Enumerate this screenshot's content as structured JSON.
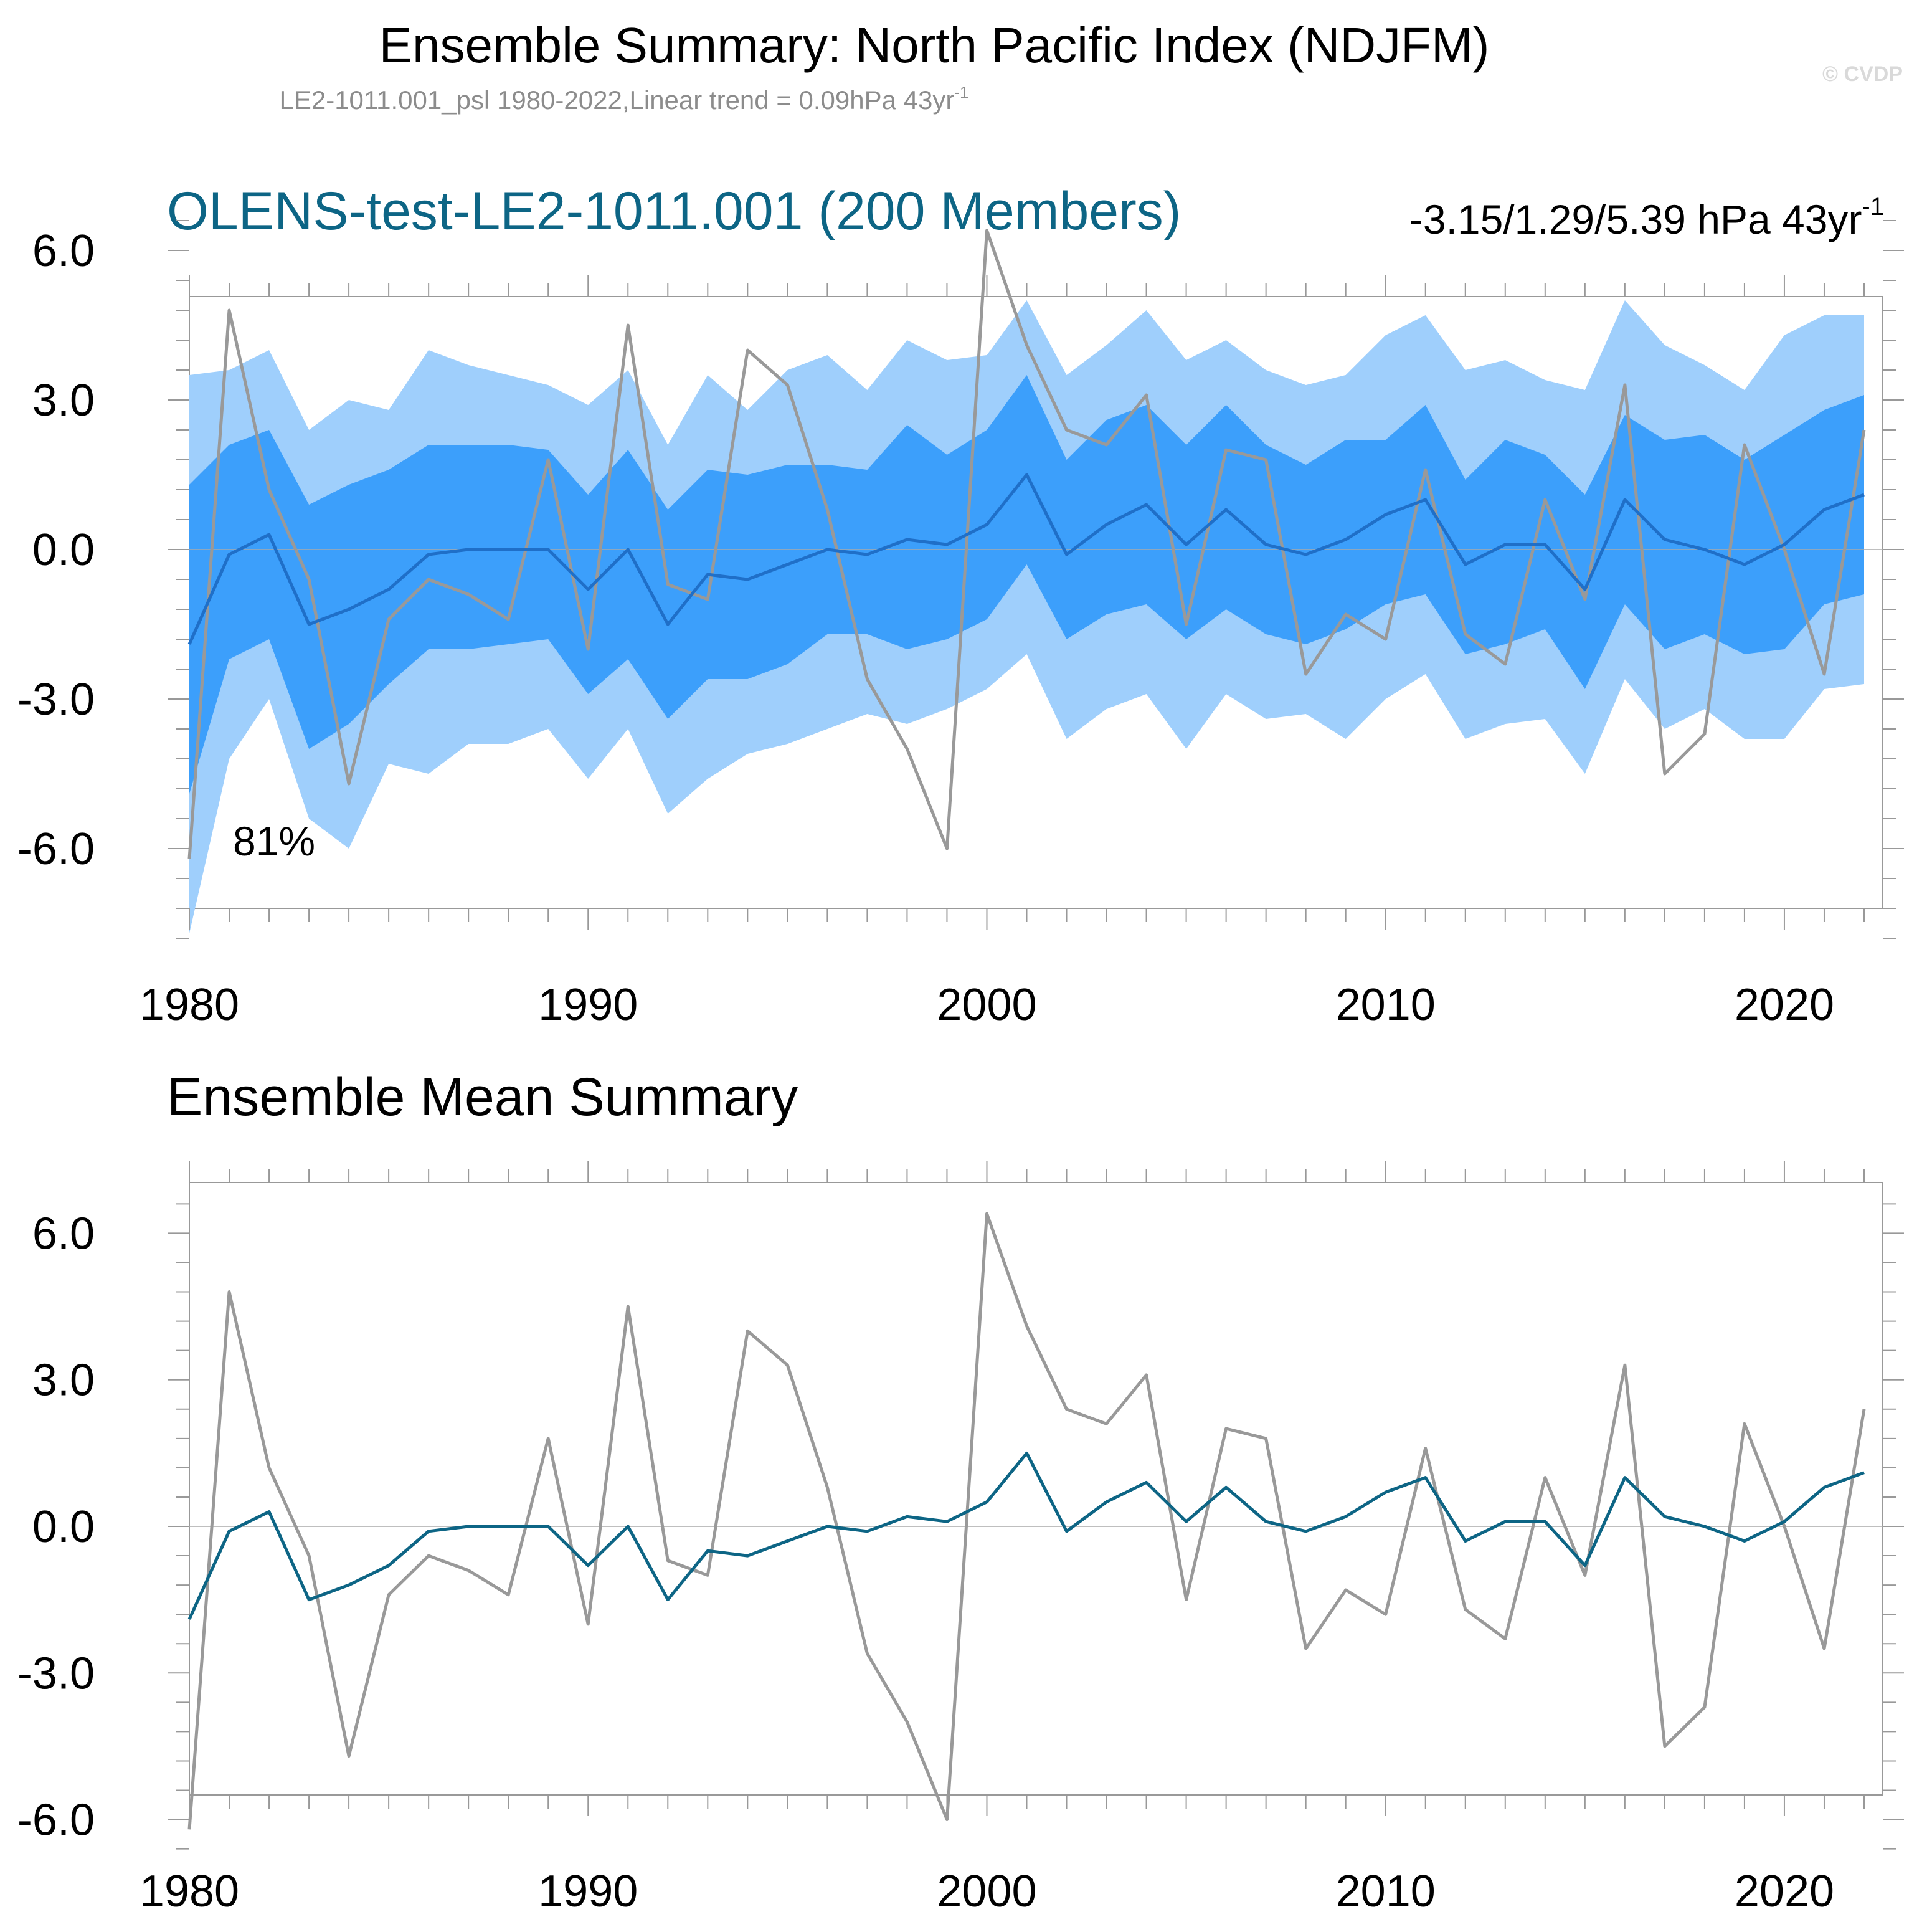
{
  "title": "Ensemble Summary: North Pacific Index (NDJFM)",
  "subtitle": "LE2-1011.001_psl 1980-2022,Linear trend = 0.09hPa 43yr",
  "subtitle_sup": "-1",
  "watermark": "© CVDP",
  "panel1": {
    "title": "OLENS-test-LE2-1011.001 (200 Members)",
    "trend": "-3.15/1.29/5.39 hPa 43yr",
    "trend_sup": "-1",
    "percent_label": "81%"
  },
  "panel2": {
    "title": "Ensemble Mean Summary"
  },
  "colors": {
    "outer_band": "#9fcffc",
    "inner_band": "#3c9ffb",
    "panel1_mean": "#1f6fc8",
    "panel2_mean": "#0d6585",
    "observed": "#999999",
    "title_blue": "#0d6585",
    "frame": "#999999"
  },
  "chart_data": [
    {
      "type": "area",
      "title": "OLENS-test-LE2-1011.001 (200 Members)",
      "xlabel": "",
      "ylabel": "",
      "xlim": [
        1980,
        2022
      ],
      "ylim": [
        -8.1,
        6.9
      ],
      "x_ticks": [
        "1980",
        "1990",
        "2000",
        "2010",
        "2020"
      ],
      "y_ticks": [
        "6.0",
        "3.0",
        "0.0",
        "-3.0",
        "-6.0"
      ],
      "x": [
        1980,
        1981,
        1982,
        1983,
        1984,
        1985,
        1986,
        1987,
        1988,
        1989,
        1990,
        1991,
        1992,
        1993,
        1994,
        1995,
        1996,
        1997,
        1998,
        1999,
        2000,
        2001,
        2002,
        2003,
        2004,
        2005,
        2006,
        2007,
        2008,
        2009,
        2010,
        2011,
        2012,
        2013,
        2014,
        2015,
        2016,
        2017,
        2018,
        2019,
        2020,
        2021,
        2022
      ],
      "series": [
        {
          "name": "ensemble 2-98% range lower",
          "values": [
            -7.7,
            -4.2,
            -3.0,
            -5.4,
            -6.0,
            -4.3,
            -4.5,
            -3.9,
            -3.9,
            -3.6,
            -4.6,
            -3.6,
            -5.3,
            -4.6,
            -4.1,
            -3.9,
            -3.6,
            -3.3,
            -3.5,
            -3.2,
            -2.8,
            -2.1,
            -3.8,
            -3.2,
            -2.9,
            -4.0,
            -2.9,
            -3.4,
            -3.3,
            -3.8,
            -3.0,
            -2.5,
            -3.8,
            -3.5,
            -3.4,
            -4.5,
            -2.6,
            -3.6,
            -3.2,
            -3.8,
            -3.8,
            -2.8,
            -2.7
          ]
        },
        {
          "name": "ensemble 2-98% range upper",
          "values": [
            3.5,
            3.6,
            4.0,
            2.4,
            3.0,
            2.8,
            4.0,
            3.7,
            3.5,
            3.3,
            2.9,
            3.6,
            2.1,
            3.5,
            2.8,
            3.6,
            3.9,
            3.2,
            4.2,
            3.8,
            3.9,
            5.0,
            3.5,
            4.1,
            4.8,
            3.8,
            4.2,
            3.6,
            3.3,
            3.5,
            4.3,
            4.7,
            3.6,
            3.8,
            3.4,
            3.2,
            5.0,
            4.1,
            3.7,
            3.2,
            4.3,
            4.7,
            4.7
          ]
        },
        {
          "name": "ensemble 10-90% range lower",
          "values": [
            -4.9,
            -2.2,
            -1.8,
            -4.0,
            -3.5,
            -2.7,
            -2.0,
            -2.0,
            -1.9,
            -1.8,
            -2.9,
            -2.2,
            -3.4,
            -2.6,
            -2.6,
            -2.3,
            -1.7,
            -1.7,
            -2.0,
            -1.8,
            -1.4,
            -0.3,
            -1.8,
            -1.3,
            -1.1,
            -1.8,
            -1.2,
            -1.7,
            -1.9,
            -1.6,
            -1.1,
            -0.9,
            -2.1,
            -1.9,
            -1.6,
            -2.8,
            -1.1,
            -2.0,
            -1.7,
            -2.1,
            -2.0,
            -1.1,
            -0.9
          ]
        },
        {
          "name": "ensemble 10-90% range upper",
          "values": [
            1.3,
            2.1,
            2.4,
            0.9,
            1.3,
            1.6,
            2.1,
            2.1,
            2.1,
            2.0,
            1.1,
            2.0,
            0.8,
            1.6,
            1.5,
            1.7,
            1.7,
            1.6,
            2.5,
            1.9,
            2.4,
            3.5,
            1.8,
            2.6,
            2.9,
            2.1,
            2.9,
            2.1,
            1.7,
            2.2,
            2.2,
            2.9,
            1.4,
            2.2,
            1.9,
            1.1,
            2.7,
            2.2,
            2.3,
            1.8,
            2.3,
            2.8,
            3.1
          ]
        },
        {
          "name": "ensemble mean",
          "values": [
            -1.9,
            -0.1,
            0.3,
            -1.5,
            -1.2,
            -0.8,
            -0.1,
            0.0,
            0.0,
            0.0,
            -0.8,
            0.0,
            -1.5,
            -0.5,
            -0.6,
            -0.3,
            0.0,
            -0.1,
            0.2,
            0.1,
            0.5,
            1.5,
            -0.1,
            0.5,
            0.9,
            0.1,
            0.8,
            0.1,
            -0.1,
            0.2,
            0.7,
            1.0,
            -0.3,
            0.1,
            0.1,
            -0.8,
            1.0,
            0.2,
            0.0,
            -0.3,
            0.1,
            0.8,
            1.1
          ]
        },
        {
          "name": "observed",
          "values": [
            -6.2,
            4.8,
            1.2,
            -0.6,
            -4.7,
            -1.4,
            -0.6,
            -0.9,
            -1.4,
            1.8,
            -2.0,
            4.5,
            -0.7,
            -1.0,
            4.0,
            3.3,
            0.8,
            -2.6,
            -4.0,
            -6.0,
            6.4,
            4.1,
            2.4,
            2.1,
            3.1,
            -1.5,
            2.0,
            1.8,
            -2.5,
            -1.3,
            -1.8,
            1.6,
            -1.7,
            -2.3,
            1.0,
            -1.0,
            3.3,
            -4.5,
            -3.7,
            2.1,
            0.0,
            -2.5,
            2.4
          ]
        }
      ]
    },
    {
      "type": "line",
      "title": "Ensemble Mean Summary",
      "xlabel": "",
      "ylabel": "",
      "xlim": [
        1980,
        2022
      ],
      "ylim": [
        -7.0,
        7.0
      ],
      "x_ticks": [
        "1980",
        "1990",
        "2000",
        "2010",
        "2020"
      ],
      "y_ticks": [
        "6.0",
        "3.0",
        "0.0",
        "-3.0",
        "-6.0"
      ],
      "x": [
        1980,
        1981,
        1982,
        1983,
        1984,
        1985,
        1986,
        1987,
        1988,
        1989,
        1990,
        1991,
        1992,
        1993,
        1994,
        1995,
        1996,
        1997,
        1998,
        1999,
        2000,
        2001,
        2002,
        2003,
        2004,
        2005,
        2006,
        2007,
        2008,
        2009,
        2010,
        2011,
        2012,
        2013,
        2014,
        2015,
        2016,
        2017,
        2018,
        2019,
        2020,
        2021,
        2022
      ],
      "series": [
        {
          "name": "observed",
          "values": [
            -6.2,
            4.8,
            1.2,
            -0.6,
            -4.7,
            -1.4,
            -0.6,
            -0.9,
            -1.4,
            1.8,
            -2.0,
            4.5,
            -0.7,
            -1.0,
            4.0,
            3.3,
            0.8,
            -2.6,
            -4.0,
            -6.0,
            6.4,
            4.1,
            2.4,
            2.1,
            3.1,
            -1.5,
            2.0,
            1.8,
            -2.5,
            -1.3,
            -1.8,
            1.6,
            -1.7,
            -2.3,
            1.0,
            -1.0,
            3.3,
            -4.5,
            -3.7,
            2.1,
            0.0,
            -2.5,
            2.4
          ]
        },
        {
          "name": "ensemble mean",
          "values": [
            -1.9,
            -0.1,
            0.3,
            -1.5,
            -1.2,
            -0.8,
            -0.1,
            0.0,
            0.0,
            0.0,
            -0.8,
            0.0,
            -1.5,
            -0.5,
            -0.6,
            -0.3,
            0.0,
            -0.1,
            0.2,
            0.1,
            0.5,
            1.5,
            -0.1,
            0.5,
            0.9,
            0.1,
            0.8,
            0.1,
            -0.1,
            0.2,
            0.7,
            1.0,
            -0.3,
            0.1,
            0.1,
            -0.8,
            1.0,
            0.2,
            0.0,
            -0.3,
            0.1,
            0.8,
            1.1
          ]
        }
      ]
    }
  ]
}
